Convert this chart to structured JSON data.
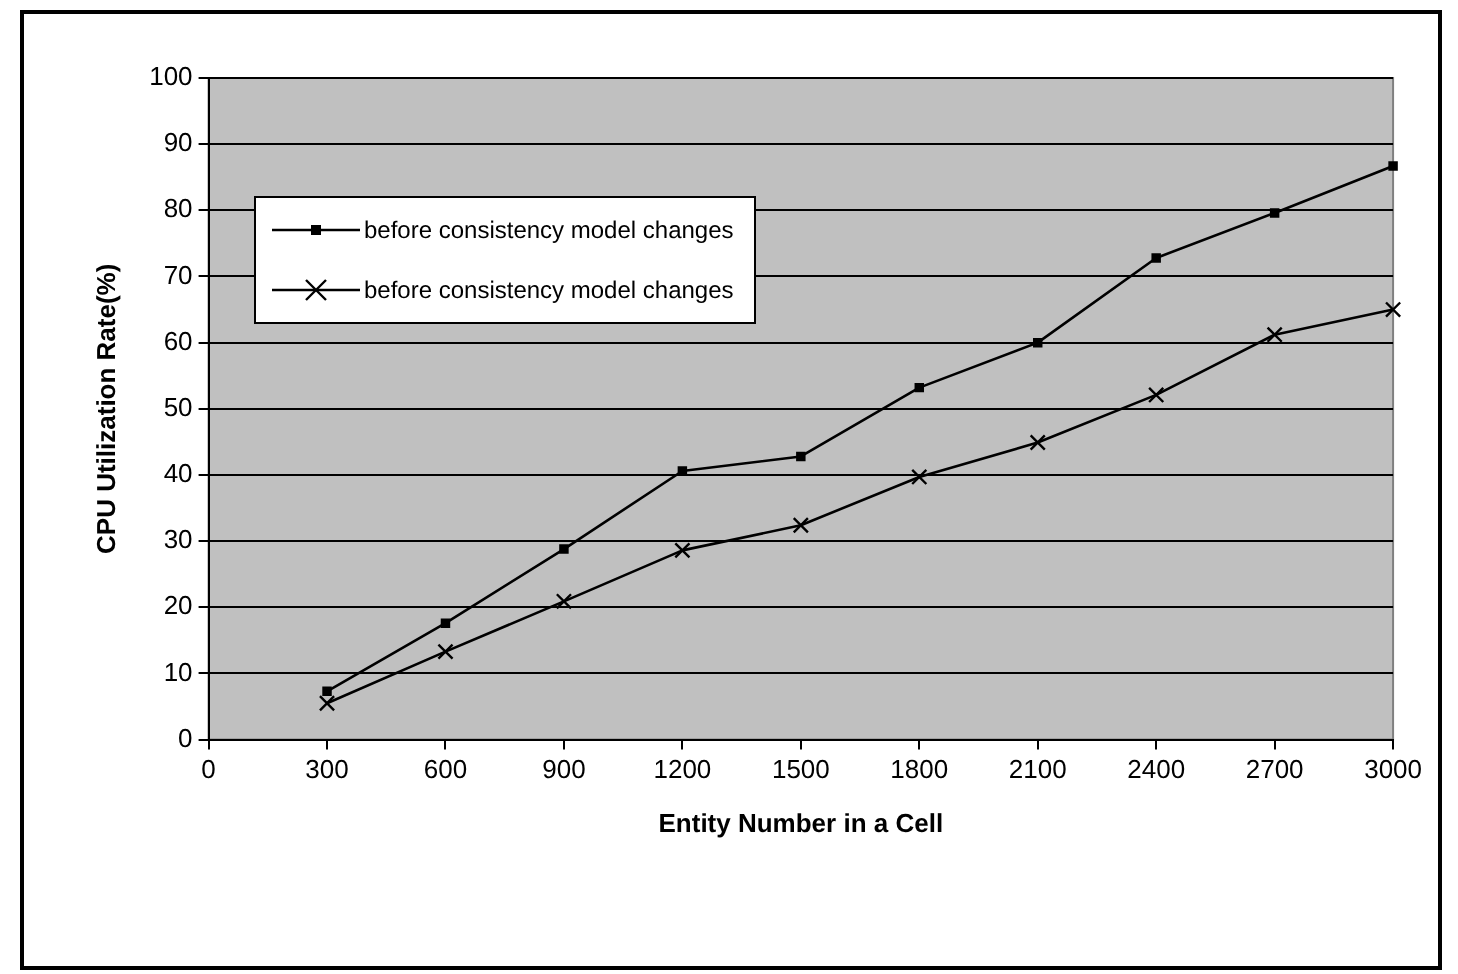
{
  "chart_data": {
    "type": "line",
    "xlabel": "Entity Number in a Cell",
    "ylabel": "CPU Utilization Rate(%)",
    "x": [
      300,
      600,
      900,
      1200,
      1500,
      1800,
      2100,
      2400,
      2700,
      3000
    ],
    "series": [
      {
        "name": "before consistency model changes",
        "color": "#000000",
        "marker": "square",
        "values": [
          7.3,
          17.6,
          28.8,
          40.6,
          42.8,
          53.2,
          60,
          72.8,
          79.6,
          86.7
        ]
      },
      {
        "name": "before consistency model changes",
        "color": "#000000",
        "marker": "cross",
        "values": [
          5.5,
          13.3,
          20.9,
          28.6,
          32.4,
          39.7,
          44.9,
          52.1,
          61.2,
          65
        ]
      }
    ],
    "xlim": [
      0,
      3000
    ],
    "xticks": [
      0,
      300,
      600,
      900,
      1200,
      1500,
      1800,
      2100,
      2400,
      2700,
      3000
    ],
    "ylim": [
      0,
      100
    ],
    "yticks": [
      0,
      10,
      20,
      30,
      40,
      50,
      60,
      70,
      80,
      90,
      100
    ],
    "grid": "y",
    "legend": "top left",
    "line_style": "solid"
  }
}
